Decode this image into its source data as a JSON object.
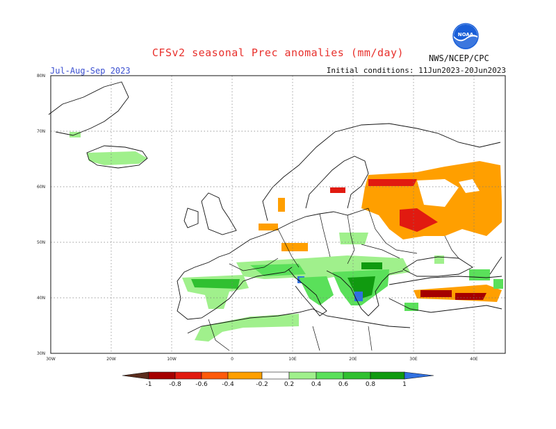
{
  "header": {
    "title": "CFSv2 seasonal Prec anomalies (mm/day)",
    "season": "Jul-Aug-Sep 2023",
    "initial_conditions": "Initial conditions: 11Jun2023-20Jun2023",
    "agency": "NWS/NCEP/CPC",
    "logo_text": "NOAA"
  },
  "map": {
    "lon_range": [
      -30,
      45
    ],
    "lat_range": [
      30,
      80
    ],
    "lat_labels": [
      "80N",
      "70N",
      "60N",
      "50N",
      "40N",
      "30N"
    ],
    "lon_labels": [
      "30W",
      "20W",
      "10W",
      "0",
      "10E",
      "20E",
      "30E",
      "40E"
    ]
  },
  "colorbar": {
    "labels": [
      "-1",
      "-0.8",
      "-0.6",
      "-0.4",
      "-0.2",
      "0.2",
      "0.4",
      "0.6",
      "0.8",
      "1"
    ],
    "colors": {
      "below_min": "#5a2c1c",
      "neg_1_08": "#a50000",
      "neg_08_06": "#e11a10",
      "neg_06_04": "#ff5a0a",
      "neg_04_02": "#ff9f00",
      "pos_02_04": "#a0f08c",
      "pos_04_06": "#5ae05a",
      "pos_06_08": "#30c030",
      "pos_08_1": "#109a10",
      "above_max": "#3070e0"
    }
  },
  "colors": {
    "title": "#e8302c",
    "season": "#3a4fd0",
    "logo_blue": "#1a5fd8"
  }
}
